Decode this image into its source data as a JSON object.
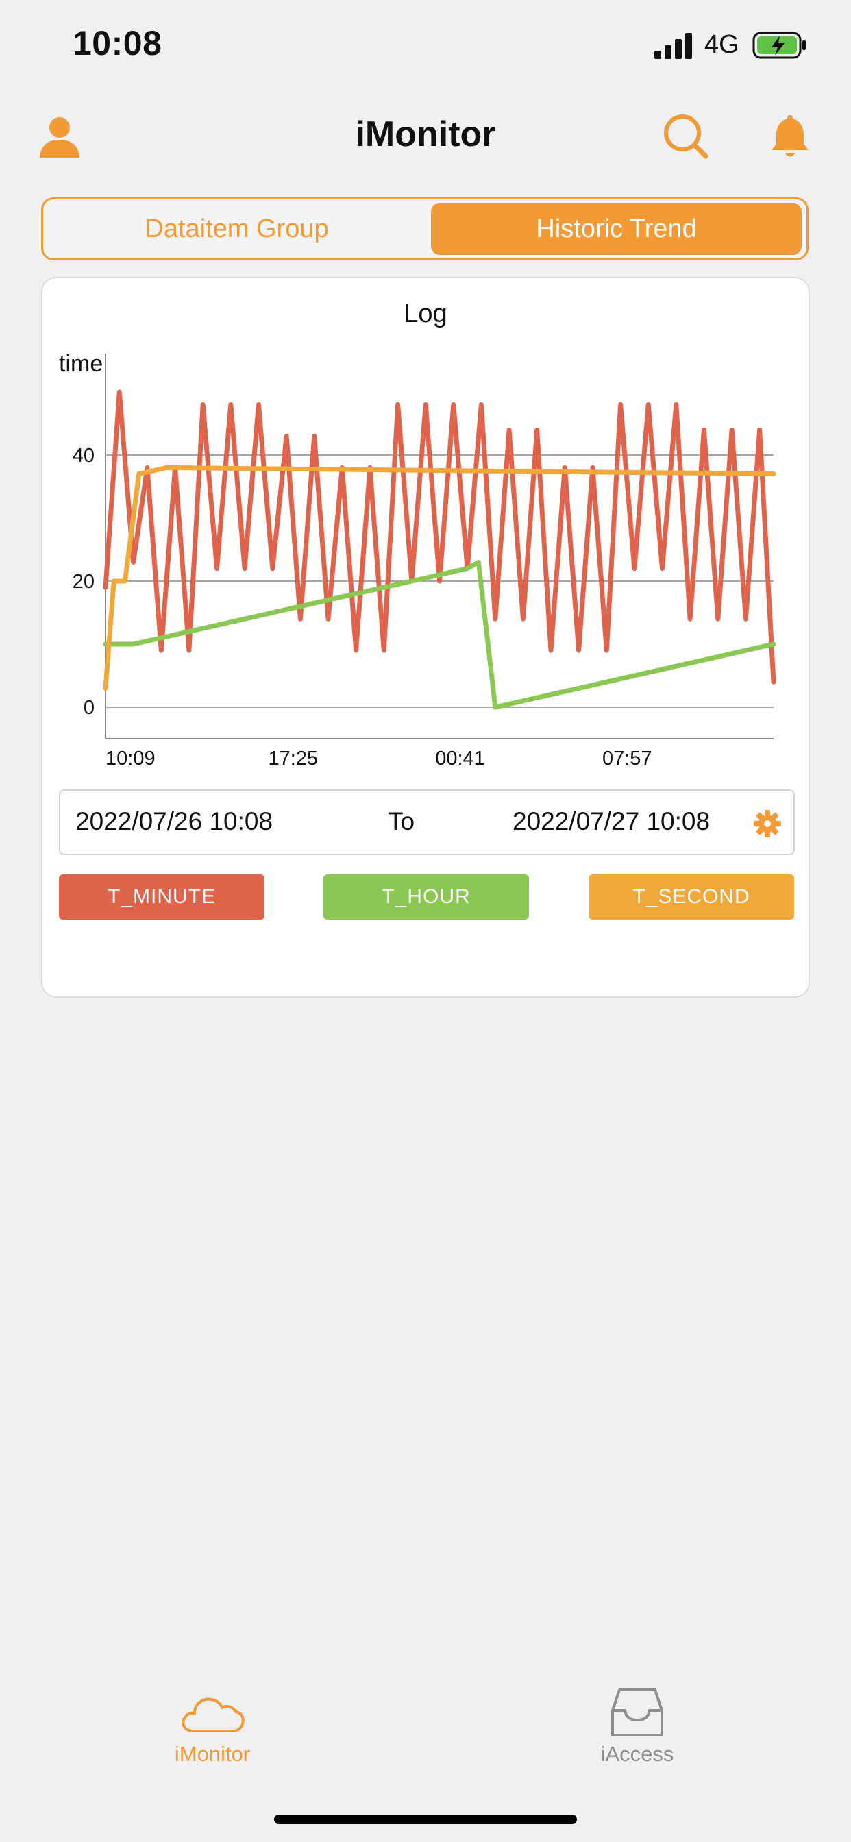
{
  "status": {
    "time": "10:08",
    "network": "4G"
  },
  "nav": {
    "title": "iMonitor"
  },
  "segment": {
    "left_label": "Dataitem Group",
    "right_label": "Historic Trend",
    "selected": "Historic Trend"
  },
  "chart_data": {
    "type": "line",
    "title": "Log",
    "ylabel": "time",
    "xlabel": "",
    "ylim": [
      -5,
      55
    ],
    "x_tick_labels": [
      "10:09",
      "17:25",
      "00:41",
      "07:57"
    ],
    "y_tick_labels": [
      "0",
      "20",
      "40"
    ],
    "grid": true,
    "legend": "below",
    "series": [
      {
        "name": "T_MINUTE",
        "color": "#e0644c",
        "x": [
          0,
          0.5,
          1,
          1.5,
          2,
          2.5,
          3,
          3.5,
          4,
          4.5,
          5,
          5.5,
          6,
          6.5,
          7,
          7.5,
          8,
          8.5,
          9,
          9.5,
          10,
          10.5,
          11,
          11.5,
          12,
          12.5,
          13,
          13.5,
          14,
          14.5,
          15,
          15.5,
          16,
          16.5,
          17,
          17.5,
          18,
          18.5,
          19,
          19.5,
          20,
          20.5,
          21,
          21.5,
          22,
          22.5,
          23,
          23.5,
          24
        ],
        "values": [
          19,
          50,
          23,
          38,
          9,
          38,
          9,
          48,
          22,
          48,
          22,
          48,
          22,
          43,
          14,
          43,
          14,
          38,
          9,
          38,
          9,
          48,
          20,
          48,
          20,
          48,
          22,
          48,
          14,
          44,
          14,
          44,
          9,
          38,
          9,
          38,
          9,
          48,
          22,
          48,
          22,
          48,
          14,
          44,
          14,
          44,
          14,
          44,
          4
        ]
      },
      {
        "name": "T_HOUR",
        "color": "#8ac853",
        "x": [
          0,
          1,
          2,
          3,
          4,
          5,
          6,
          7,
          8,
          9,
          10,
          11,
          12,
          13,
          13.4,
          14,
          15,
          16,
          17,
          18,
          19,
          20,
          21,
          22,
          23,
          24
        ],
        "values": [
          10,
          10,
          11,
          12,
          13,
          14,
          15,
          16,
          17,
          18,
          19,
          20,
          21,
          22,
          23,
          0,
          1,
          2,
          3,
          4,
          5,
          6,
          7,
          8,
          9,
          10
        ]
      },
      {
        "name": "T_SECOND",
        "color": "#f0a83a",
        "x": [
          0,
          0.3,
          0.7,
          1.2,
          2.2,
          24
        ],
        "values": [
          3,
          20,
          20,
          37,
          38,
          37
        ]
      }
    ]
  },
  "date_range": {
    "from": "2022/07/26 10:08",
    "to_label": "To",
    "to": "2022/07/27 10:08"
  },
  "legend": {
    "minute": "T_MINUTE",
    "hour": "T_HOUR",
    "second": "T_SECOND"
  },
  "tabbar": {
    "imonitor": "iMonitor",
    "iaccess": "iAccess"
  },
  "colors": {
    "accent": "#f19a36",
    "inactive": "#8e8e8e",
    "background": "#f0f0f0"
  },
  "icons": [
    "user-icon",
    "search-icon",
    "bell-icon",
    "gear-icon",
    "cloud-icon",
    "inbox-icon"
  ]
}
